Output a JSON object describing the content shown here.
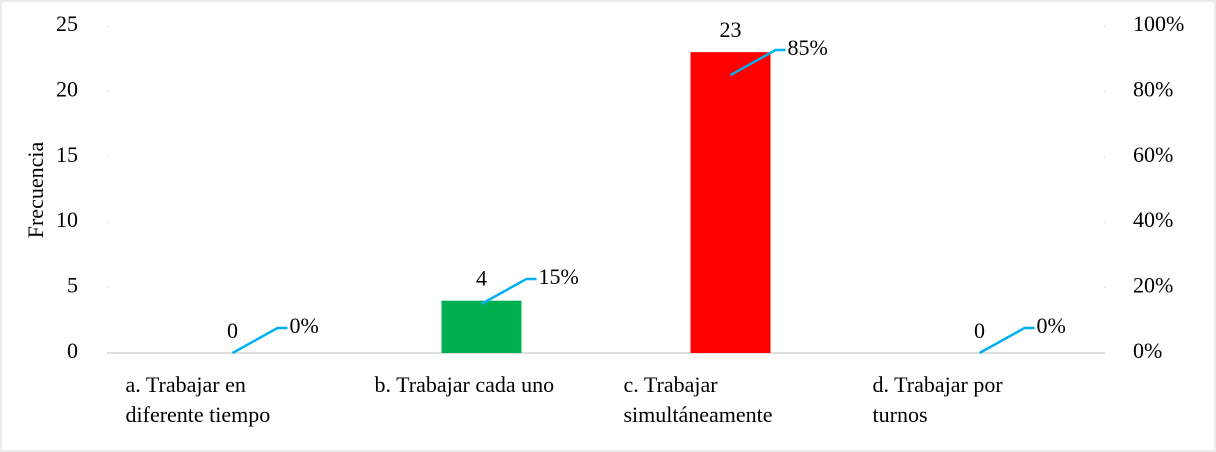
{
  "chart_data": {
    "type": "bar",
    "y_label": "Frecuencia",
    "categories": [
      "a. Trabajar en diferente tiempo",
      "b. Trabajar cada uno",
      "c. Trabajar simultáneamente",
      "d. Trabajar por turnos"
    ],
    "series": [
      {
        "values": [
          0,
          4,
          23,
          0
        ],
        "colors": [
          "#4472c4",
          "#00b050",
          "#ff0000",
          "#4472c4"
        ]
      },
      {
        "axis": "y2",
        "color": "#00b0f0",
        "values": [
          0,
          15,
          85,
          0
        ],
        "value_labels": [
          "0%",
          "15%",
          "85%",
          "0%"
        ]
      }
    ],
    "ylim": [
      0,
      25
    ],
    "yticks": [
      0,
      5,
      10,
      15,
      20,
      25
    ],
    "y2lim": [
      0,
      100
    ],
    "y2ticks": [
      {
        "value": 0,
        "label": "0%"
      },
      {
        "value": 20,
        "label": "20%"
      },
      {
        "value": 40,
        "label": "40%"
      },
      {
        "value": 60,
        "label": "60%"
      },
      {
        "value": 80,
        "label": "80%"
      },
      {
        "value": 100,
        "label": "100%"
      }
    ],
    "grid": false
  }
}
